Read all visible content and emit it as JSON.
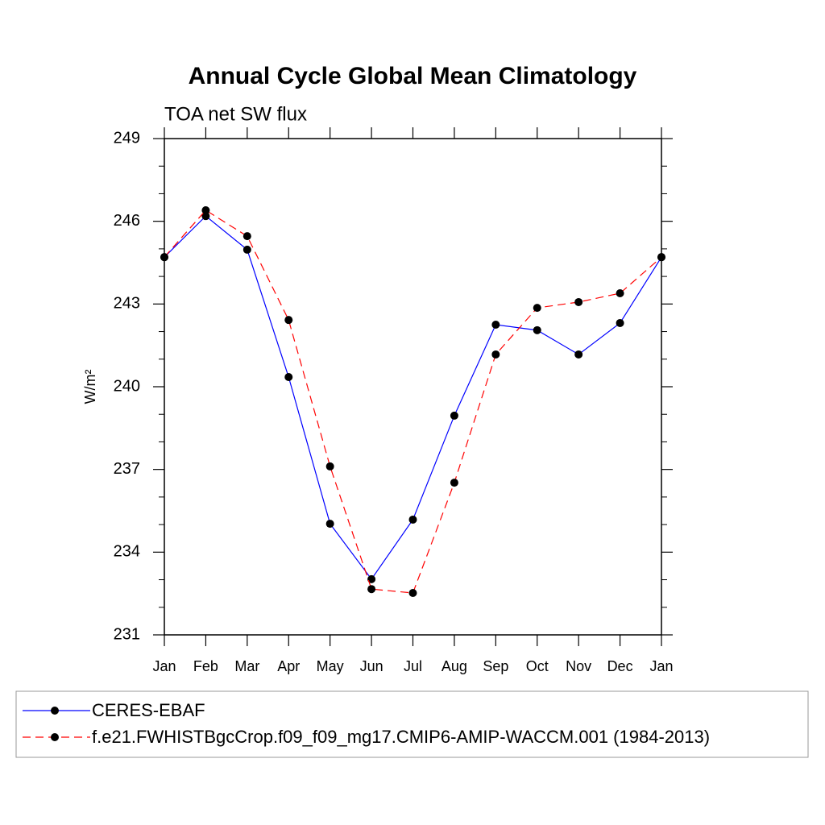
{
  "chart_data": {
    "type": "line",
    "title": "Annual Cycle Global Mean Climatology",
    "subtitle": "TOA net SW flux",
    "y_label": "W/m²",
    "categories": [
      "Jan",
      "Feb",
      "Mar",
      "Apr",
      "May",
      "Jun",
      "Jul",
      "Aug",
      "Sep",
      "Oct",
      "Nov",
      "Dec",
      "Jan"
    ],
    "series": [
      {
        "name": "CERES-EBAF",
        "color": "#0000ff",
        "dash": false,
        "values": [
          244.7,
          246.19,
          244.97,
          240.35,
          235.03,
          233.02,
          235.18,
          238.95,
          242.25,
          242.05,
          241.17,
          242.31,
          244.7
        ]
      },
      {
        "name": "f.e21.FWHISTBgcCrop.f09_f09_mg17.CMIP6-AMIP-WACCM.001 (1984-2013)",
        "color": "#ff0000",
        "dash": true,
        "values": [
          244.7,
          246.4,
          245.46,
          242.42,
          237.11,
          232.66,
          232.52,
          236.52,
          241.17,
          242.86,
          243.07,
          243.39,
          244.7
        ]
      }
    ],
    "marker_color": "#000000",
    "ylim": [
      231,
      249
    ],
    "yticks": [
      231,
      234,
      237,
      240,
      243,
      246,
      249
    ],
    "legend": "bottom"
  }
}
